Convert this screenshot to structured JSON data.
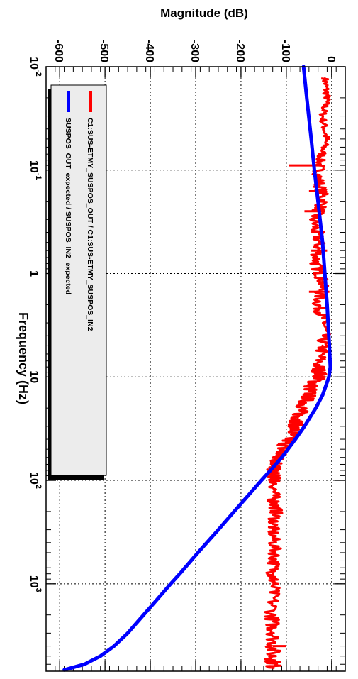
{
  "chart_data": {
    "type": "line",
    "orientation": "rotated-90-clockwise",
    "ylabel": "Magnitude (dB)",
    "xlabel": "Frequency (Hz)",
    "x_scale": "log",
    "xlim": [
      0.01,
      7000
    ],
    "ylim": [
      -630,
      30
    ],
    "grid": true,
    "x_tick_labels": [
      {
        "value": 0.01,
        "base": "10",
        "exp": "-2"
      },
      {
        "value": 0.1,
        "base": "10",
        "exp": "-1"
      },
      {
        "value": 1,
        "base": "1",
        "exp": ""
      },
      {
        "value": 10,
        "base": "10",
        "exp": ""
      },
      {
        "value": 100,
        "base": "10",
        "exp": "2"
      },
      {
        "value": 1000,
        "base": "10",
        "exp": "3"
      }
    ],
    "y_ticks": [
      0,
      -100,
      -200,
      -300,
      -400,
      -500,
      -600
    ],
    "y_tick_labels": [
      "0",
      "-100",
      "-200",
      "-300",
      "-400",
      "-500",
      "-600"
    ],
    "legend": {
      "placement": "top-left",
      "entries": [
        {
          "label": "C1:SUS-ETMY_SUSPOS_OUT / C1:SUS-ETMY_SUSPOS_IN2",
          "color": "#ff0000"
        },
        {
          "label": "SUSPOS_OUT_expected / SUSPOS_IN2_expected",
          "color": "#0000ff"
        }
      ]
    },
    "series": [
      {
        "color": "#ff0000",
        "x": [
          0.013,
          0.02,
          0.03,
          0.05,
          0.08,
          0.12,
          0.2,
          0.3,
          0.5,
          0.8,
          1.2,
          2,
          3,
          5,
          8,
          10,
          12,
          15,
          20,
          25,
          30,
          40,
          50,
          60,
          70,
          80,
          90,
          100,
          150,
          200,
          300,
          500,
          800,
          1000,
          2000,
          3000,
          5000,
          6500
        ],
        "y": [
          -15,
          -10,
          -20,
          -12,
          -25,
          -30,
          -18,
          -40,
          -28,
          -35,
          -20,
          -30,
          -15,
          -20,
          -30,
          -25,
          -45,
          -50,
          -65,
          -75,
          -80,
          -95,
          -110,
          -118,
          -122,
          -130,
          -128,
          -125,
          -128,
          -122,
          -130,
          -125,
          -130,
          -128,
          -132,
          -128,
          -130,
          -128
        ],
        "noise": [
          8,
          8,
          8,
          8,
          10,
          14,
          14,
          14,
          14,
          14,
          14,
          14,
          14,
          14,
          16,
          16,
          16,
          16,
          16,
          16,
          16,
          16,
          16,
          16,
          16,
          14,
          14,
          14,
          14,
          14,
          14,
          14,
          14,
          14,
          16,
          16,
          18,
          18
        ],
        "bars": [
          {
            "x": 0.09,
            "y_low": -95,
            "y_high": -25
          },
          {
            "x": 0.16,
            "y_low": -50,
            "y_high": -15
          },
          {
            "x": 0.25,
            "y_low": -60,
            "y_high": -15
          },
          {
            "x": 0.4,
            "y_low": -45,
            "y_high": -15
          },
          {
            "x": 0.6,
            "y_low": -45,
            "y_high": -10
          },
          {
            "x": 1.5,
            "y_low": -50,
            "y_high": -5
          },
          {
            "x": 4000,
            "y_low": -130,
            "y_high": -100
          }
        ]
      },
      {
        "color": "#0000ff",
        "x": [
          0.01,
          0.02,
          0.05,
          0.1,
          0.2,
          0.5,
          1,
          2,
          5,
          8,
          10,
          15,
          20,
          30,
          40,
          60,
          80,
          100,
          150,
          200,
          300,
          500,
          800,
          1000,
          1500,
          2000,
          3000,
          4000,
          5000,
          6000,
          6800
        ],
        "y": [
          -62,
          -55,
          -45,
          -38,
          -30,
          -20,
          -15,
          -10,
          -5,
          -3,
          -6,
          -20,
          -35,
          -60,
          -80,
          -110,
          -135,
          -155,
          -190,
          -215,
          -250,
          -295,
          -335,
          -355,
          -390,
          -415,
          -450,
          -480,
          -510,
          -545,
          -590
        ]
      }
    ]
  }
}
